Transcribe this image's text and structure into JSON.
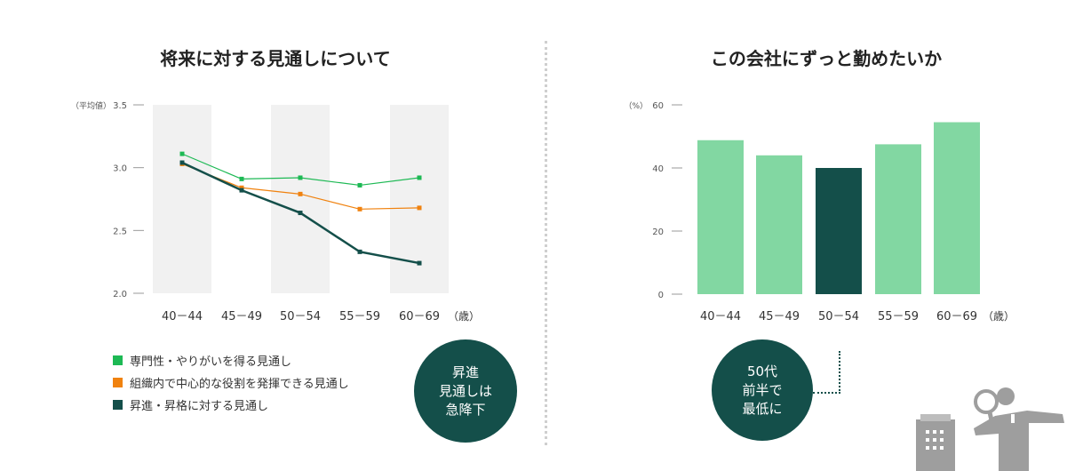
{
  "left": {
    "title": "将来に対する見通しについて",
    "bubble": [
      "昇進",
      "見通しは",
      "急降下"
    ]
  },
  "right": {
    "title": "この会社にずっと勤めたいか",
    "bubble": [
      "50代",
      "前半で",
      "最低に"
    ]
  },
  "chart_data": [
    {
      "type": "line",
      "title": "将来に対する見通しについて",
      "ylabel": "（平均値）",
      "categories": [
        "40－44",
        "45－49",
        "50－54",
        "55－59",
        "60－69"
      ],
      "x_unit": "（歳）",
      "ylim": [
        2.0,
        3.5
      ],
      "yticks": [
        "2.0",
        "2.5",
        "3.0",
        "3.5"
      ],
      "series": [
        {
          "name": "専門性・やりがいを得る見通し",
          "color": "#1db954",
          "values": [
            3.11,
            2.91,
            2.92,
            2.86,
            2.92
          ]
        },
        {
          "name": "組織内で中心的な役割を発揮できる見通し",
          "color": "#f0820f",
          "values": [
            3.03,
            2.84,
            2.79,
            2.67,
            2.68
          ]
        },
        {
          "name": "昇進・昇格に対する見通し",
          "color": "#144f4a",
          "values": [
            3.04,
            2.82,
            2.64,
            2.33,
            2.24
          ]
        }
      ]
    },
    {
      "type": "bar",
      "title": "この会社にずっと勤めたいか",
      "ylabel": "（%）",
      "categories": [
        "40－44",
        "45－49",
        "50－54",
        "55－59",
        "60－69"
      ],
      "x_unit": "（歳）",
      "ylim": [
        0,
        60
      ],
      "yticks": [
        "0",
        "20",
        "40",
        "60"
      ],
      "values": [
        48.8,
        44.0,
        40.0,
        47.5,
        54.5
      ],
      "colors": [
        "#82d7a2",
        "#82d7a2",
        "#144f4a",
        "#82d7a2",
        "#82d7a2"
      ]
    }
  ]
}
